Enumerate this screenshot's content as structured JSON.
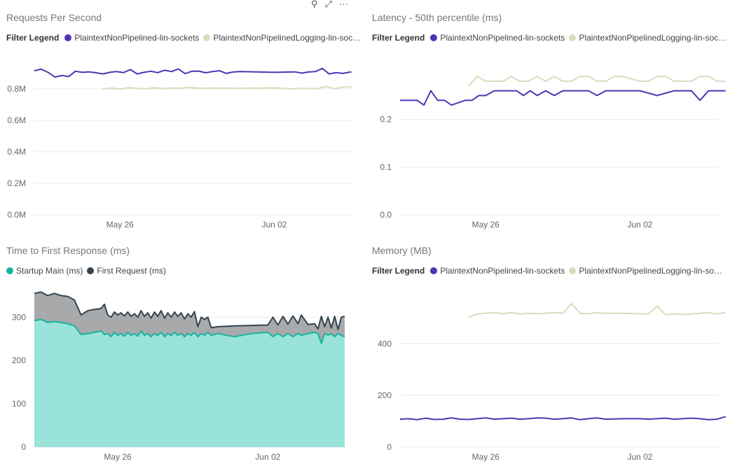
{
  "toolbar": {
    "pin_icon": "pin-icon",
    "focus_icon": "focus-mode-icon",
    "more_icon": "more-options-icon",
    "more_label": "···"
  },
  "colors": {
    "purple": "#5233b5",
    "beige": "#dbdbbc",
    "teal": "#16b3a0",
    "dark": "#37444d",
    "tealFill": "#99e3da",
    "grayFill": "#a7a9ab",
    "grid": "#e8e8e8"
  },
  "chart_data": [
    {
      "type": "line",
      "title": "Requests Per Second",
      "legend_label": "Filter Legend",
      "ylim": [
        0,
        1000000
      ],
      "yticks": [
        0,
        200000,
        400000,
        600000,
        800000
      ],
      "ytick_labels": [
        "0.0M",
        "0.2M",
        "0.4M",
        "0.6M",
        "0.8M"
      ],
      "xlim": [
        0,
        18.6
      ],
      "xticks": [
        5,
        14
      ],
      "xtick_labels": [
        "May 26",
        "Jun 02"
      ],
      "series": [
        {
          "name": "PlaintextNonPipelined-lin-sockets",
          "color": "#5233b5",
          "x": [
            0,
            0.4,
            0.8,
            1.2,
            1.6,
            2,
            2.4,
            2.8,
            3.2,
            3.6,
            4,
            4.4,
            4.8,
            5.2,
            5.6,
            6,
            6.4,
            6.8,
            7.2,
            7.6,
            8,
            8.4,
            8.8,
            9.2,
            9.6,
            10,
            10.4,
            10.8,
            11.2,
            11.6,
            12,
            14,
            15.2,
            15.6,
            16,
            16.4,
            16.8,
            17.2,
            17.6,
            18,
            18.5
          ],
          "y": [
            915000,
            925000,
            905000,
            875000,
            885000,
            878000,
            912000,
            905000,
            908000,
            902000,
            895000,
            905000,
            910000,
            903000,
            922000,
            895000,
            905000,
            912000,
            903000,
            918000,
            910000,
            926000,
            897000,
            912000,
            913000,
            902000,
            910000,
            915000,
            898000,
            907000,
            910000,
            905000,
            908000,
            900000,
            907000,
            910000,
            930000,
            895000,
            903000,
            898000,
            908000
          ]
        },
        {
          "name": "PlaintextNonPipelinedLogging-lin-sockets",
          "color": "#dbdbbc",
          "x": [
            4,
            4.5,
            5,
            5.5,
            6,
            6.5,
            7,
            7.5,
            8,
            8.5,
            9,
            9.5,
            10,
            10.5,
            11,
            11.5,
            12,
            12.5,
            13,
            13.5,
            14,
            14.5,
            15,
            15.5,
            16,
            16.5,
            17,
            17.5,
            18,
            18.5
          ],
          "y": [
            800000,
            805000,
            798000,
            808000,
            803000,
            800000,
            807000,
            801000,
            806000,
            803000,
            810000,
            805000,
            803000,
            806000,
            804000,
            805000,
            802000,
            806000,
            804000,
            806000,
            807000,
            803000,
            800000,
            803000,
            802000,
            801000,
            815000,
            801000,
            812000,
            813000
          ]
        }
      ]
    },
    {
      "type": "line",
      "title": "Latency - 50th percentile (ms)",
      "legend_label": "Filter Legend",
      "ylim": [
        0,
        0.33
      ],
      "yticks": [
        0,
        0.1,
        0.2
      ],
      "ytick_labels": [
        "0.0",
        "0.1",
        "0.2"
      ],
      "xlim": [
        0,
        18.6
      ],
      "xticks": [
        5,
        14
      ],
      "xtick_labels": [
        "May 26",
        "Jun 02"
      ],
      "series": [
        {
          "name": "PlaintextNonPipelined-lin-sockets",
          "color": "#5233b5",
          "x": [
            0,
            0.5,
            1,
            1.4,
            1.8,
            2.2,
            2.6,
            3,
            3.4,
            3.8,
            4.2,
            4.6,
            5,
            5.5,
            6,
            6.4,
            6.8,
            7.2,
            7.6,
            8,
            8.5,
            9,
            9.5,
            10,
            10.5,
            11,
            11.5,
            12,
            13,
            14,
            15,
            16,
            16.5,
            17,
            17.5,
            18,
            18.5,
            19
          ],
          "y": [
            0.24,
            0.24,
            0.24,
            0.23,
            0.26,
            0.24,
            0.24,
            0.23,
            0.235,
            0.24,
            0.24,
            0.25,
            0.25,
            0.26,
            0.26,
            0.26,
            0.26,
            0.25,
            0.26,
            0.25,
            0.26,
            0.25,
            0.26,
            0.26,
            0.26,
            0.26,
            0.25,
            0.26,
            0.26,
            0.26,
            0.25,
            0.26,
            0.26,
            0.26,
            0.24,
            0.26,
            0.26,
            0.26
          ]
        },
        {
          "name": "PlaintextNonPipelinedLogging-lin-sockets",
          "color": "#dbdbbc",
          "x": [
            4,
            4.5,
            5,
            5.5,
            6,
            6.5,
            7,
            7.5,
            8,
            8.5,
            9,
            9.5,
            10,
            10.5,
            11,
            11.5,
            12,
            12.5,
            13,
            14,
            14.5,
            15,
            15.5,
            16,
            16.5,
            17,
            17.5,
            18,
            18.5,
            19
          ],
          "y": [
            0.27,
            0.29,
            0.28,
            0.28,
            0.28,
            0.29,
            0.28,
            0.28,
            0.29,
            0.28,
            0.29,
            0.28,
            0.28,
            0.29,
            0.29,
            0.28,
            0.28,
            0.29,
            0.29,
            0.28,
            0.28,
            0.29,
            0.29,
            0.28,
            0.28,
            0.28,
            0.29,
            0.29,
            0.28,
            0.28
          ]
        }
      ]
    },
    {
      "type": "area",
      "title": "Time to First Response (ms)",
      "ylim": [
        0,
        370
      ],
      "yticks": [
        0,
        100,
        200,
        300
      ],
      "ytick_labels": [
        "0",
        "100",
        "200",
        "300"
      ],
      "xlim": [
        0,
        18.6
      ],
      "xticks": [
        5,
        14
      ],
      "xtick_labels": [
        "May 26",
        "Jun 02"
      ],
      "series": [
        {
          "name": "Startup Main (ms)",
          "color": "#16b3a0",
          "fill": "#99e3da",
          "x": [
            0,
            0.4,
            0.8,
            1.2,
            1.6,
            2,
            2.4,
            2.8,
            3.2,
            3.6,
            4,
            4.2,
            4.4,
            4.6,
            4.8,
            5,
            5.2,
            5.4,
            5.6,
            5.8,
            6,
            6.2,
            6.4,
            6.6,
            6.8,
            7,
            7.2,
            7.4,
            7.6,
            7.8,
            8,
            8.2,
            8.4,
            8.6,
            8.8,
            9,
            9.2,
            9.4,
            9.6,
            9.8,
            10,
            10.2,
            10.4,
            10.6,
            11,
            12,
            13,
            14,
            14.3,
            14.6,
            14.9,
            15.2,
            15.5,
            15.8,
            16,
            16.4,
            16.8,
            17,
            17.2,
            17.4,
            17.6,
            17.8,
            18,
            18.2,
            18.4,
            18.6
          ],
          "y": [
            292,
            295,
            288,
            290,
            288,
            285,
            280,
            260,
            262,
            265,
            268,
            260,
            262,
            255,
            265,
            258,
            262,
            256,
            265,
            258,
            262,
            256,
            268,
            258,
            262,
            255,
            262,
            258,
            265,
            255,
            262,
            258,
            265,
            258,
            262,
            255,
            262,
            258,
            265,
            255,
            262,
            258,
            265,
            258,
            262,
            255,
            262,
            265,
            255,
            262,
            255,
            262,
            255,
            262,
            258,
            262,
            265,
            262,
            240,
            262,
            258,
            262,
            255,
            262,
            258,
            255
          ]
        },
        {
          "name": "First Request (ms)",
          "color": "#37444d",
          "fill": "#a7a9ab",
          "x": [
            0,
            0.4,
            0.8,
            1.2,
            1.6,
            2,
            2.4,
            2.8,
            3.2,
            3.6,
            4,
            4.2,
            4.4,
            4.6,
            4.8,
            5,
            5.2,
            5.4,
            5.6,
            5.8,
            6,
            6.2,
            6.4,
            6.6,
            6.8,
            7,
            7.2,
            7.4,
            7.6,
            7.8,
            8,
            8.2,
            8.4,
            8.6,
            8.8,
            9,
            9.2,
            9.4,
            9.6,
            9.8,
            10,
            10.2,
            10.4,
            10.6,
            11,
            12,
            13,
            14,
            14.3,
            14.6,
            14.9,
            15.2,
            15.5,
            15.8,
            16,
            16.4,
            16.8,
            17,
            17.2,
            17.4,
            17.6,
            17.8,
            18,
            18.2,
            18.4,
            18.6
          ],
          "y": [
            355,
            358,
            350,
            355,
            350,
            348,
            340,
            305,
            315,
            318,
            320,
            330,
            305,
            300,
            312,
            305,
            310,
            303,
            312,
            302,
            308,
            300,
            315,
            302,
            310,
            298,
            312,
            302,
            315,
            298,
            310,
            300,
            312,
            302,
            310,
            296,
            308,
            300,
            313,
            278,
            300,
            295,
            300,
            276,
            278,
            280,
            281,
            282,
            300,
            282,
            302,
            284,
            303,
            285,
            305,
            283,
            285,
            273,
            302,
            278,
            300,
            275,
            302,
            272,
            300,
            302
          ]
        }
      ]
    },
    {
      "type": "line",
      "title": "Memory (MB)",
      "legend_label": "Filter Legend",
      "ylim": [
        0,
        620
      ],
      "yticks": [
        0,
        200,
        400
      ],
      "ytick_labels": [
        "0",
        "200",
        "400"
      ],
      "xlim": [
        0,
        18.6
      ],
      "xticks": [
        5,
        14
      ],
      "xtick_labels": [
        "May 26",
        "Jun 02"
      ],
      "series": [
        {
          "name": "PlaintextNonPipelined-lin-sockets",
          "color": "#5233b5",
          "x": [
            0,
            0.5,
            1,
            1.5,
            2,
            2.5,
            3,
            3.5,
            4,
            4.5,
            5,
            5.5,
            6,
            6.5,
            7,
            7.5,
            8,
            8.5,
            9,
            9.5,
            10,
            10.5,
            11,
            11.5,
            12,
            13,
            14,
            14.5,
            15,
            15.5,
            16,
            16.5,
            17,
            17.5,
            18,
            18.5,
            19
          ],
          "y": [
            108,
            110,
            106,
            112,
            107,
            108,
            113,
            108,
            107,
            110,
            113,
            108,
            110,
            112,
            108,
            110,
            113,
            112,
            108,
            110,
            113,
            106,
            110,
            113,
            108,
            110,
            110,
            108,
            110,
            112,
            108,
            110,
            112,
            110,
            106,
            108,
            118
          ]
        },
        {
          "name": "PlaintextNonPipelinedLogging-lin-sockets",
          "color": "#dbdbbc",
          "x": [
            4,
            4.5,
            5,
            5.5,
            6,
            6.5,
            7,
            7.5,
            8,
            8.5,
            9,
            9.5,
            10,
            10.5,
            11,
            11.5,
            12,
            13,
            14,
            14.5,
            15,
            15.5,
            16,
            16.5,
            17,
            17.5,
            18,
            18.5,
            19
          ],
          "y": [
            502,
            515,
            518,
            520,
            516,
            520,
            515,
            518,
            516,
            518,
            520,
            518,
            555,
            518,
            516,
            520,
            518,
            518,
            516,
            515,
            545,
            512,
            515,
            513,
            515,
            518,
            520,
            515,
            520
          ]
        }
      ]
    }
  ]
}
